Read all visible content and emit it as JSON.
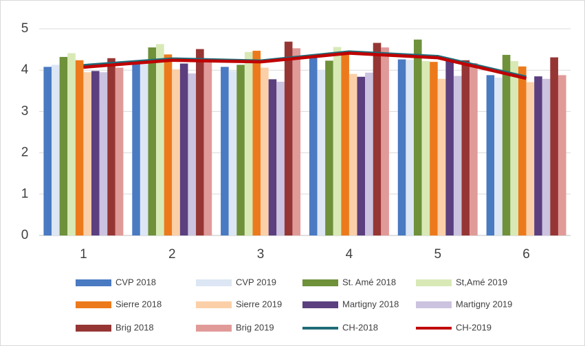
{
  "chart_data": {
    "type": "bar",
    "categories": [
      "1",
      "2",
      "3",
      "4",
      "5",
      "6"
    ],
    "ylim": [
      0,
      5
    ],
    "yticks": [
      0,
      1,
      2,
      3,
      4,
      5
    ],
    "grid": true,
    "series": [
      {
        "name": "CVP 2018",
        "color": "#4a7ac2",
        "values": [
          4.08,
          4.15,
          4.08,
          4.3,
          4.26,
          3.88
        ]
      },
      {
        "name": "CVP 2019",
        "color": "#dce6f4",
        "values": [
          4.13,
          4.18,
          3.98,
          4.0,
          4.25,
          3.82
        ]
      },
      {
        "name": "St. Amé 2018",
        "color": "#6e913a",
        "values": [
          4.32,
          4.55,
          4.13,
          4.23,
          4.74,
          4.37
        ]
      },
      {
        "name": "St,Amé 2019",
        "color": "#d8e9b6",
        "values": [
          4.41,
          4.63,
          4.44,
          4.56,
          4.22,
          4.22
        ]
      },
      {
        "name": "Sierre 2018",
        "color": "#ec7a1c",
        "values": [
          4.24,
          4.38,
          4.47,
          4.4,
          4.2,
          4.09
        ]
      },
      {
        "name": "Sierre 2019",
        "color": "#fbd0a8",
        "values": [
          3.95,
          4.02,
          4.06,
          3.91,
          3.79,
          3.71
        ]
      },
      {
        "name": "Martigny 2018",
        "color": "#5b3f7f",
        "values": [
          3.98,
          4.16,
          3.78,
          3.84,
          4.28,
          3.85
        ]
      },
      {
        "name": "Martigny 2019",
        "color": "#cbc3df",
        "values": [
          3.95,
          3.92,
          3.72,
          3.94,
          3.86,
          3.79
        ]
      },
      {
        "name": "Brig 2018",
        "color": "#963634",
        "values": [
          4.29,
          4.51,
          4.69,
          4.66,
          4.24,
          4.31
        ]
      },
      {
        "name": "Brig 2019",
        "color": "#e09a98",
        "values": [
          4.06,
          4.22,
          4.53,
          4.55,
          4.17,
          3.88
        ]
      },
      {
        "name": "CH-2018",
        "color": "#1f6b78",
        "type": "line",
        "values": [
          4.12,
          4.28,
          4.23,
          4.45,
          4.34,
          3.84
        ]
      },
      {
        "name": "CH-2019",
        "color": "#c00000",
        "type": "line",
        "values": [
          4.07,
          4.24,
          4.2,
          4.41,
          4.3,
          3.8
        ]
      }
    ]
  }
}
